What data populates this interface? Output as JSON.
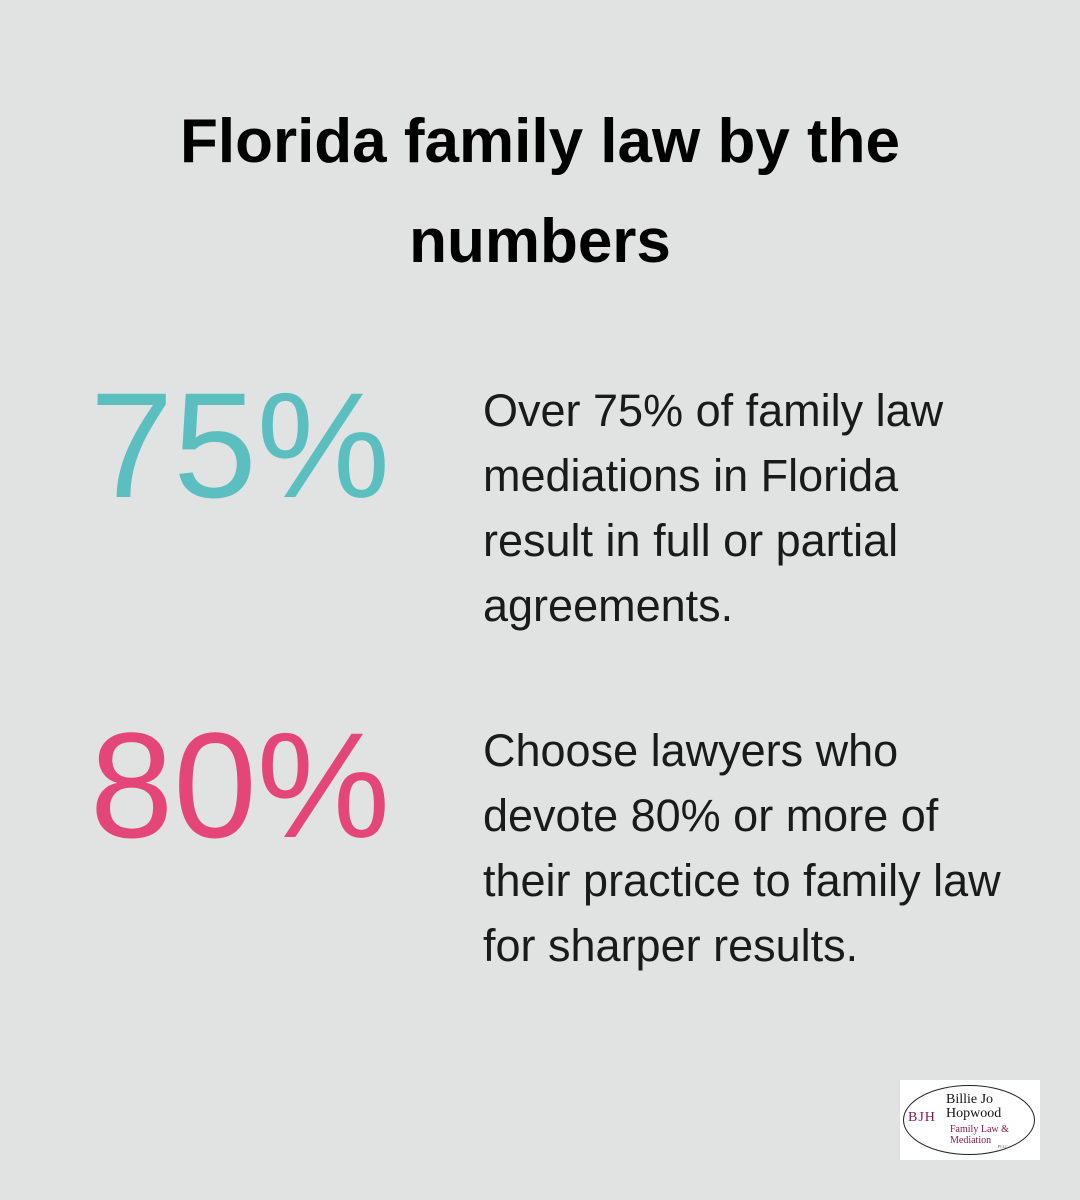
{
  "header": {
    "title": "Florida family law by the numbers"
  },
  "stats": [
    {
      "value": "75%",
      "description": "Over 75% of family law mediations in Florida result in full or partial agreements."
    },
    {
      "value": "80%",
      "description": "Choose lawyers who devote 80% or more of their practice to family law for sharper results."
    }
  ],
  "logo": {
    "initials": "BJH",
    "name_line1": "Billie Jo",
    "name_line2": "Hopwood",
    "tagline_line1": "Family Law &",
    "tagline_line2": "Mediation",
    "suffix": "PLLC"
  }
}
